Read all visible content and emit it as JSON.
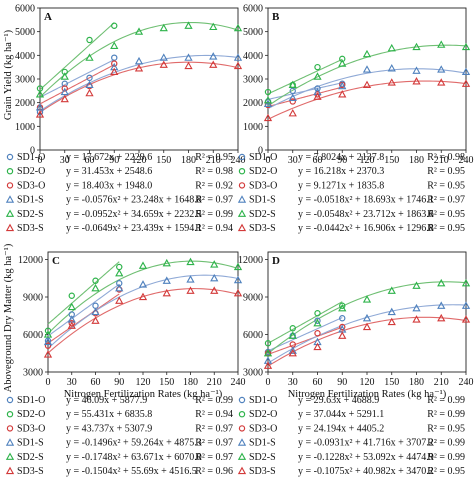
{
  "figure": {
    "ylabel_top": "Grain Yield (kg ha⁻¹)",
    "ylabel_bottom": "Aboveground Dry Matter (kg ha⁻¹)",
    "xlabel": "Nitrogen Fertilization Rates (kg ha⁻¹)"
  },
  "colors": {
    "SD1": "#4f81bd",
    "SD2": "#2db34a",
    "SD3": "#d33a3a",
    "SD1_curve": "#8fa9d6",
    "SD2_curve": "#6fbf73",
    "SD3_curve": "#e06a6a"
  },
  "legend_symbols": {
    "O": "circle",
    "S": "triangle"
  },
  "chart_data": [
    {
      "panel": "A",
      "type": "scatter",
      "x_ticks": [
        0,
        30,
        60,
        90,
        120,
        150,
        180,
        210,
        240
      ],
      "y_ticks": [
        0,
        1000,
        2000,
        3000,
        4000,
        5000,
        6000
      ],
      "xlim": [
        0,
        240
      ],
      "ylim": [
        0,
        6000
      ],
      "series": [
        {
          "name": "SD1-O",
          "group": "SD1",
          "marker": "circle",
          "x": [
            0,
            30,
            60,
            90
          ],
          "y": [
            1600,
            2800,
            3050,
            3900
          ],
          "equation": "y = 17.672x + 2229.6",
          "r2": "R² = 0.95"
        },
        {
          "name": "SD2-O",
          "group": "SD2",
          "marker": "circle",
          "x": [
            0,
            30,
            60,
            90
          ],
          "y": [
            2600,
            3300,
            4650,
            5250
          ],
          "equation": "y = 31.453x + 2548.6",
          "r2": "R² = 0.98"
        },
        {
          "name": "SD3-O",
          "group": "SD3",
          "marker": "circle",
          "x": [
            0,
            30,
            60,
            90
          ],
          "y": [
            1800,
            2600,
            2700,
            3650
          ],
          "equation": "y = 18.403x + 1948.0",
          "r2": "R² = 0.92"
        },
        {
          "name": "SD1-S",
          "group": "SD1",
          "marker": "triangle",
          "x": [
            0,
            30,
            60,
            90,
            120,
            150,
            180,
            210,
            240
          ],
          "y": [
            1800,
            2450,
            2750,
            3500,
            3750,
            3900,
            3900,
            3950,
            3900
          ],
          "equation": "y = -0.0576x² + 23.248x + 1648.8",
          "r2": "R² = 0.97"
        },
        {
          "name": "SD2-S",
          "group": "SD2",
          "marker": "triangle",
          "x": [
            0,
            30,
            60,
            90,
            120,
            150,
            180,
            210,
            240
          ],
          "y": [
            2350,
            3100,
            3900,
            4400,
            5000,
            5150,
            5250,
            5200,
            5150
          ],
          "equation": "y = -0.0952x² + 34.659x + 2232.5",
          "r2": "R² = 0.99"
        },
        {
          "name": "SD3-S",
          "group": "SD3",
          "marker": "triangle",
          "x": [
            0,
            30,
            60,
            90,
            120,
            150,
            180,
            210,
            240
          ],
          "y": [
            1500,
            2150,
            2400,
            3300,
            3450,
            3600,
            3550,
            3600,
            3550
          ],
          "equation": "y = -0.0649x² + 23.439x + 1594.1",
          "r2": "R² = 0.94"
        }
      ]
    },
    {
      "panel": "B",
      "type": "scatter",
      "x_ticks": [
        0,
        30,
        60,
        90,
        120,
        150,
        180,
        210,
        240
      ],
      "y_ticks": [
        0,
        1000,
        2000,
        3000,
        4000,
        5000,
        6000
      ],
      "xlim": [
        0,
        240
      ],
      "ylim": [
        0,
        6000
      ],
      "series": [
        {
          "name": "SD1-O",
          "group": "SD1",
          "marker": "circle",
          "x": [
            0,
            30,
            60,
            90
          ],
          "y": [
            2050,
            2500,
            2600,
            2800
          ],
          "equation": "y = 7.8024x + 2137.8",
          "r2": "R² = 0.98"
        },
        {
          "name": "SD2-O",
          "group": "SD2",
          "marker": "circle",
          "x": [
            0,
            30,
            60,
            90
          ],
          "y": [
            2450,
            2750,
            3500,
            3850
          ],
          "equation": "y = 16.218x + 2370.3",
          "r2": "R² = 0.95"
        },
        {
          "name": "SD3-O",
          "group": "SD3",
          "marker": "circle",
          "x": [
            0,
            30,
            60,
            90
          ],
          "y": [
            1900,
            2050,
            2350,
            2750
          ],
          "equation": "y = 9.1271x + 1835.8",
          "r2": "R² = 0.95"
        },
        {
          "name": "SD1-S",
          "group": "SD1",
          "marker": "triangle",
          "x": [
            0,
            30,
            60,
            90,
            120,
            150,
            180,
            210,
            240
          ],
          "y": [
            1950,
            2200,
            2450,
            2700,
            3400,
            3450,
            3350,
            3400,
            3300
          ],
          "equation": "y = -0.0518x² + 18.693x + 1746.1",
          "r2": "R² = 0.97"
        },
        {
          "name": "SD2-S",
          "group": "SD2",
          "marker": "triangle",
          "x": [
            0,
            30,
            60,
            90,
            120,
            150,
            180,
            210,
            240
          ],
          "y": [
            2100,
            2750,
            3100,
            3650,
            4050,
            4300,
            4350,
            4450,
            4350
          ],
          "equation": "y = -0.0548x² + 23.712x + 1863.6",
          "r2": "R² = 0.95"
        },
        {
          "name": "SD3-S",
          "group": "SD3",
          "marker": "triangle",
          "x": [
            0,
            30,
            60,
            90,
            120,
            150,
            180,
            210,
            240
          ],
          "y": [
            1350,
            1550,
            2250,
            2350,
            2750,
            2850,
            2900,
            2850,
            2800
          ],
          "equation": "y = -0.0442x² + 16.906x + 1296.8",
          "r2": "R² = 0.95"
        }
      ]
    },
    {
      "panel": "C",
      "type": "scatter",
      "x_ticks": [
        0,
        30,
        60,
        90,
        120,
        150,
        180,
        210,
        240
      ],
      "y_ticks": [
        3000,
        6000,
        9000,
        12000
      ],
      "xlim": [
        0,
        240
      ],
      "ylim": [
        3000,
        12600
      ],
      "series": [
        {
          "name": "SD1-O",
          "group": "SD1",
          "marker": "circle",
          "x": [
            0,
            30,
            60,
            90
          ],
          "y": [
            5500,
            7600,
            8300,
            10100
          ],
          "equation": "y = 46.09x + 5877.9",
          "r2": "R² = 0.99"
        },
        {
          "name": "SD2-O",
          "group": "SD2",
          "marker": "circle",
          "x": [
            0,
            30,
            60,
            90
          ],
          "y": [
            6300,
            9100,
            10300,
            11400
          ],
          "equation": "y = 55.431x + 6835.8",
          "r2": "R² = 0.94"
        },
        {
          "name": "SD3-O",
          "group": "SD3",
          "marker": "circle",
          "x": [
            0,
            30,
            60,
            90
          ],
          "y": [
            5100,
            6900,
            7700,
            9600
          ],
          "equation": "y = 43.737x + 5307.9",
          "r2": "R² = 0.97"
        },
        {
          "name": "SD1-S",
          "group": "SD1",
          "marker": "triangle",
          "x": [
            0,
            30,
            60,
            90,
            120,
            150,
            180,
            210,
            240
          ],
          "y": [
            5400,
            7200,
            7800,
            9700,
            10000,
            10300,
            10400,
            10500,
            10350
          ],
          "equation": "y = -0.1496x² + 59.264x + 4875.3",
          "r2": "R² = 0.97"
        },
        {
          "name": "SD2-S",
          "group": "SD2",
          "marker": "triangle",
          "x": [
            0,
            30,
            60,
            90,
            120,
            150,
            180,
            210,
            240
          ],
          "y": [
            6000,
            8200,
            9700,
            10900,
            11500,
            11700,
            11800,
            11600,
            11400
          ],
          "equation": "y = -0.1748x² + 63.671x + 6070.0",
          "r2": "R² = 0.97"
        },
        {
          "name": "SD3-S",
          "group": "SD3",
          "marker": "triangle",
          "x": [
            0,
            30,
            60,
            90,
            120,
            150,
            180,
            210,
            240
          ],
          "y": [
            4400,
            6700,
            7100,
            8700,
            9000,
            9300,
            9500,
            9500,
            9300
          ],
          "equation": "y = -0.1504x² + 55.69x + 4516.5",
          "r2": "R² = 0.96"
        }
      ]
    },
    {
      "panel": "D",
      "type": "scatter",
      "x_ticks": [
        0,
        30,
        60,
        90,
        120,
        150,
        180,
        210,
        240
      ],
      "y_ticks": [
        3000,
        6000,
        9000,
        12000
      ],
      "xlim": [
        0,
        240
      ],
      "ylim": [
        3000,
        12600
      ],
      "series": [
        {
          "name": "SD1-O",
          "group": "SD1",
          "marker": "circle",
          "x": [
            0,
            30,
            60,
            90
          ],
          "y": [
            4600,
            5900,
            7100,
            7300
          ],
          "equation": "y = 29.63x + 4688.9",
          "r2": "R² = 0.99"
        },
        {
          "name": "SD2-O",
          "group": "SD2",
          "marker": "circle",
          "x": [
            0,
            30,
            60,
            90
          ],
          "y": [
            5300,
            6500,
            7700,
            8300
          ],
          "equation": "y = 37.044x + 5291.1",
          "r2": "R² = 0.99"
        },
        {
          "name": "SD3-O",
          "group": "SD3",
          "marker": "circle",
          "x": [
            0,
            30,
            60,
            90
          ],
          "y": [
            4500,
            5200,
            6100,
            6600
          ],
          "equation": "y = 24.194x + 4405.2",
          "r2": "R² = 0.95"
        },
        {
          "name": "SD1-S",
          "group": "SD1",
          "marker": "triangle",
          "x": [
            0,
            30,
            60,
            90,
            120,
            150,
            180,
            210,
            240
          ],
          "y": [
            3900,
            4700,
            5400,
            6400,
            7300,
            7800,
            8100,
            8300,
            8300
          ],
          "equation": "y = -0.0931x² + 41.716x + 3707.2",
          "r2": "R² = 0.99"
        },
        {
          "name": "SD2-S",
          "group": "SD2",
          "marker": "triangle",
          "x": [
            0,
            30,
            60,
            90,
            120,
            150,
            180,
            210,
            240
          ],
          "y": [
            4500,
            5900,
            6900,
            8100,
            8800,
            9500,
            9900,
            10100,
            10100
          ],
          "equation": "y = -0.1228x² + 53.092x + 4474.9",
          "r2": "R² = 0.99"
        },
        {
          "name": "SD3-S",
          "group": "SD3",
          "marker": "triangle",
          "x": [
            0,
            30,
            60,
            90,
            120,
            150,
            180,
            210,
            240
          ],
          "y": [
            3500,
            4500,
            5000,
            5900,
            6600,
            7000,
            7200,
            7300,
            7200
          ],
          "equation": "y = -0.1075x² + 40.982x + 3470.2",
          "r2": "R² = 0.95"
        }
      ]
    }
  ]
}
